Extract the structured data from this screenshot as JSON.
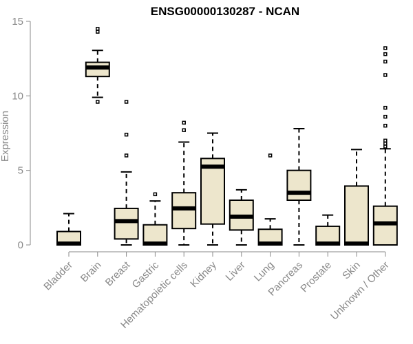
{
  "chart_data": {
    "type": "boxplot",
    "title": "ENSG00000130287 - NCAN",
    "ylabel": "Expression",
    "ylim": [
      0,
      15
    ],
    "yticks": [
      0,
      5,
      10,
      15
    ],
    "colors": {
      "box_fill": "#ede6cc",
      "axis": "#888888",
      "line": "#000000"
    },
    "categories": [
      "Bladder",
      "Brain",
      "Breast",
      "Gastric",
      "Hematopoietic cells",
      "Kidney",
      "Liver",
      "Lung",
      "Pancreas",
      "Prostate",
      "Skin",
      "Unknown / Other"
    ],
    "boxes": [
      {
        "min": 0,
        "q1": 0,
        "median": 0,
        "q3": 0.9,
        "max": 2.1,
        "outliers": []
      },
      {
        "min": 9.9,
        "q1": 11.3,
        "median": 11.9,
        "q3": 12.25,
        "max": 13.05,
        "outliers": [
          9.6,
          14.3,
          14.5
        ]
      },
      {
        "min": 0,
        "q1": 0.4,
        "median": 1.6,
        "q3": 2.45,
        "max": 4.9,
        "outliers": [
          6.0,
          7.4,
          9.6
        ]
      },
      {
        "min": 0,
        "q1": 0,
        "median": 0,
        "q3": 1.35,
        "max": 2.95,
        "outliers": [
          3.4
        ]
      },
      {
        "min": 0,
        "q1": 1.1,
        "median": 2.45,
        "q3": 3.5,
        "max": 6.9,
        "outliers": [
          7.7,
          8.2
        ]
      },
      {
        "min": 0,
        "q1": 1.4,
        "median": 5.25,
        "q3": 5.8,
        "max": 7.5,
        "outliers": []
      },
      {
        "min": 0,
        "q1": 1.0,
        "median": 1.9,
        "q3": 3.0,
        "max": 3.7,
        "outliers": []
      },
      {
        "min": 0,
        "q1": 0,
        "median": 0,
        "q3": 1.05,
        "max": 1.75,
        "outliers": [
          6.0
        ]
      },
      {
        "min": 0,
        "q1": 3.0,
        "median": 3.5,
        "q3": 5.0,
        "max": 7.8,
        "outliers": []
      },
      {
        "min": 0,
        "q1": 0,
        "median": 0,
        "q3": 1.25,
        "max": 2.0,
        "outliers": []
      },
      {
        "min": 0,
        "q1": 0,
        "median": 0,
        "q3": 3.95,
        "max": 6.4,
        "outliers": []
      },
      {
        "min": 0,
        "q1": 0,
        "median": 1.45,
        "q3": 2.6,
        "max": 6.45,
        "outliers": [
          6.6,
          6.8,
          7.0,
          8.0,
          8.6,
          9.2,
          11.4,
          12.3,
          12.8,
          13.2
        ]
      }
    ]
  }
}
